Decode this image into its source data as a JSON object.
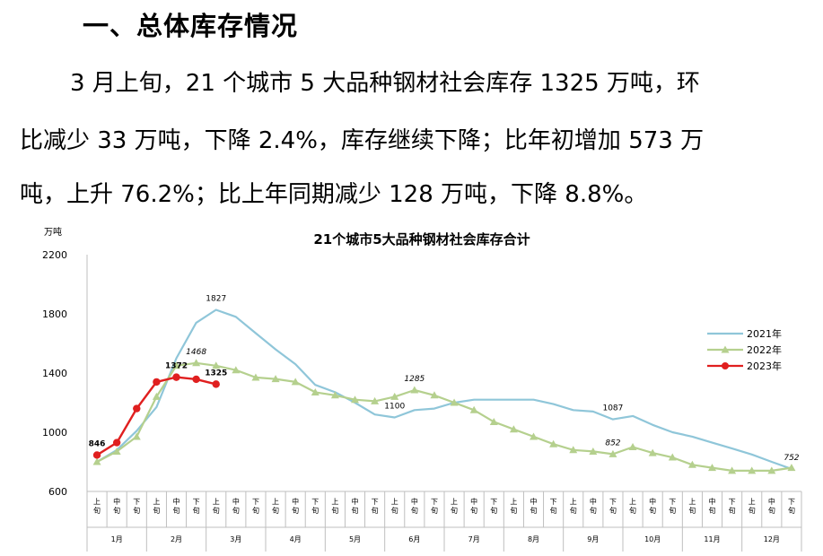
{
  "heading": "一、总体库存情况",
  "paragraph": {
    "line1": "3 月上旬，21 个城市 5 大品种钢材社会库存 1325 万吨，环",
    "line2": "比减少 33 万吨，下降 2.4%，库存继续下降；比年初增加 573 万",
    "line3": "吨，上升 76.2%；比上年同期减少 128 万吨，下降 8.8%。"
  },
  "chart_data": {
    "type": "line",
    "title": "21个城市5大品种钢材社会库存合计",
    "ylabel": "万吨",
    "ylim": [
      600,
      2200
    ],
    "yticks": [
      "2200",
      "1800",
      "1400",
      "1000",
      "600"
    ],
    "ytick_values": [
      2200,
      1800,
      1400,
      1000,
      600
    ],
    "x_sub_labels": [
      "上旬",
      "中旬",
      "下旬"
    ],
    "months": [
      "1月",
      "2月",
      "3月",
      "4月",
      "5月",
      "6月",
      "7月",
      "8月",
      "9月",
      "10月",
      "11月",
      "12月"
    ],
    "legend_position": "right",
    "series": [
      {
        "name": "2021年",
        "color": "#8fc6d9",
        "marker": "none",
        "values": [
          800,
          880,
          1010,
          1170,
          1500,
          1740,
          1827,
          1780,
          1670,
          1560,
          1460,
          1320,
          1270,
          1200,
          1120,
          1100,
          1150,
          1160,
          1200,
          1220,
          1220,
          1220,
          1220,
          1190,
          1150,
          1140,
          1087,
          1110,
          1050,
          1000,
          970,
          930,
          890,
          850,
          800,
          752
        ]
      },
      {
        "name": "2022年",
        "color": "#b5d08e",
        "marker": "triangle",
        "values": [
          800,
          870,
          970,
          1240,
          1450,
          1468,
          1450,
          1420,
          1370,
          1360,
          1340,
          1270,
          1250,
          1220,
          1210,
          1240,
          1285,
          1250,
          1200,
          1150,
          1070,
          1020,
          970,
          920,
          880,
          870,
          852,
          900,
          860,
          830,
          780,
          760,
          740,
          740,
          740,
          760
        ]
      },
      {
        "name": "2023年",
        "color": "#e01f1f",
        "marker": "circle",
        "values": [
          846,
          930,
          1160,
          1340,
          1372,
          1358,
          1325
        ]
      }
    ],
    "annotations": [
      {
        "text": "846",
        "series": 2,
        "index": 0,
        "bold": true,
        "italic": false
      },
      {
        "text": "1372",
        "series": 2,
        "index": 4,
        "bold": true,
        "italic": false
      },
      {
        "text": "1325",
        "series": 2,
        "index": 6,
        "bold": true,
        "italic": false
      },
      {
        "text": "1468",
        "series": 1,
        "index": 5,
        "bold": false,
        "italic": true
      },
      {
        "text": "1827",
        "series": 0,
        "index": 6,
        "bold": false,
        "italic": false
      },
      {
        "text": "1285",
        "series": 1,
        "index": 16,
        "bold": false,
        "italic": true
      },
      {
        "text": "1100",
        "series": 0,
        "index": 15,
        "bold": false,
        "italic": false
      },
      {
        "text": "1087",
        "series": 0,
        "index": 26,
        "bold": false,
        "italic": false
      },
      {
        "text": "852",
        "series": 1,
        "index": 26,
        "bold": false,
        "italic": true
      },
      {
        "text": "752",
        "series": 0,
        "index": 35,
        "bold": false,
        "italic": true
      }
    ]
  }
}
